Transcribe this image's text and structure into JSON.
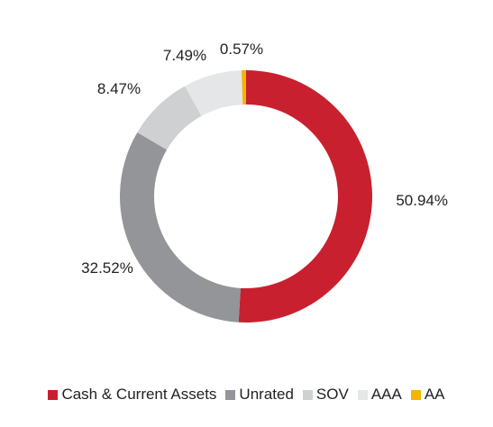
{
  "chart_data": {
    "type": "pie",
    "style": "donut",
    "title": "",
    "categories": [
      "Cash & Current Assets",
      "Unrated",
      "SOV",
      "AAA",
      "AA"
    ],
    "values": [
      50.94,
      32.52,
      8.47,
      7.49,
      0.57
    ],
    "labels": [
      "50.94%",
      "32.52%",
      "8.47%",
      "7.49%",
      "0.57%"
    ],
    "colors": [
      "#c8202f",
      "#939598",
      "#cfd0d2",
      "#e5e6e7",
      "#f5b400"
    ],
    "legend_position": "bottom",
    "start_angle": "top",
    "direction": "clockwise"
  }
}
